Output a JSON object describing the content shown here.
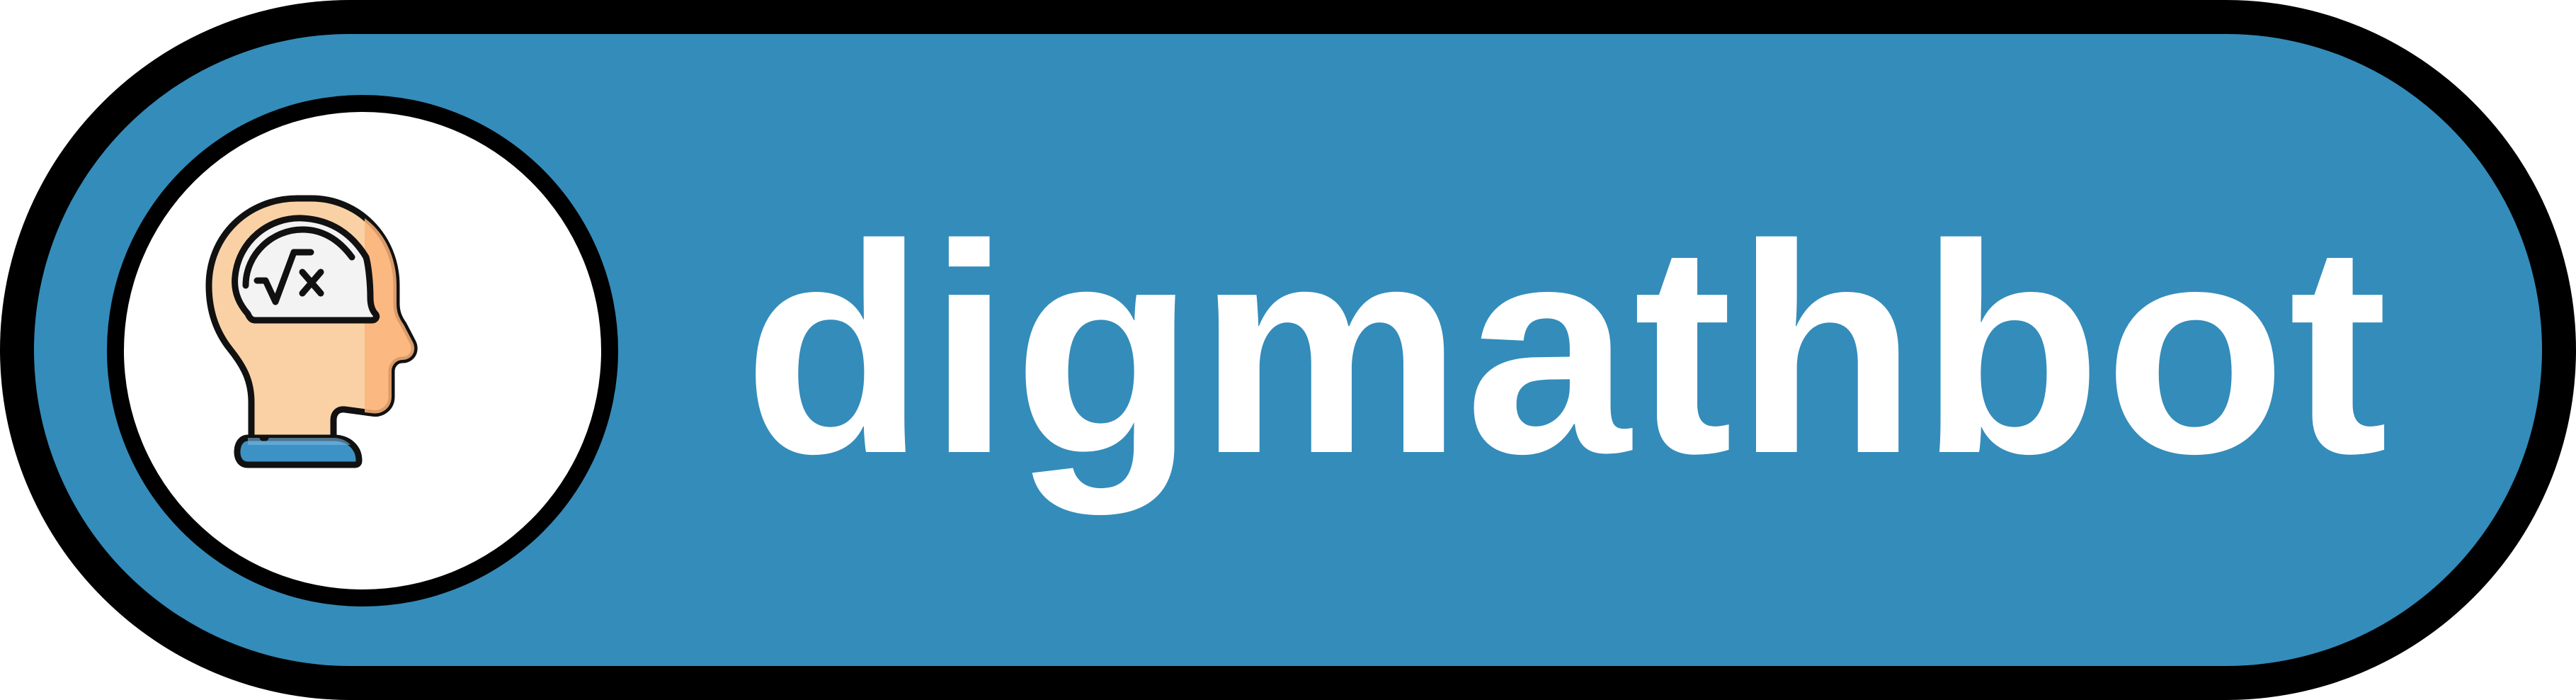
{
  "badge": {
    "text": "digmathbot",
    "background_color": "#348cba",
    "border_color": "#000000",
    "text_color": "#ffffff"
  },
  "logo": {
    "icon": "head-math-icon",
    "circle_color": "#ffffff",
    "border_color": "#000000"
  }
}
